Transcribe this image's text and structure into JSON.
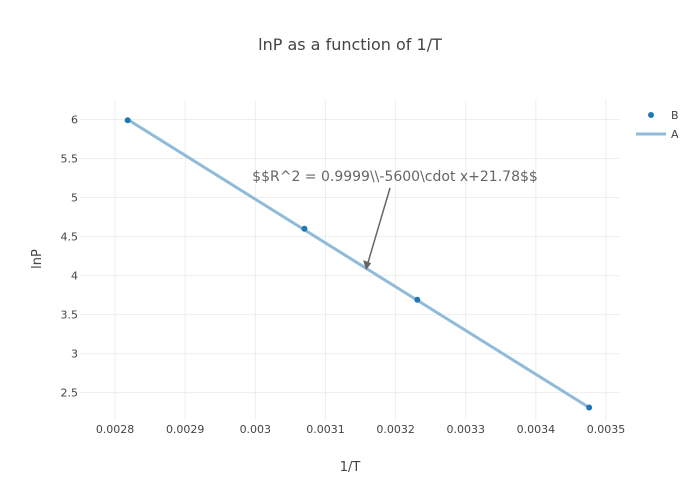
{
  "chart_data": {
    "type": "line",
    "title": "lnP as a function of 1/T",
    "xlabel": "1/T",
    "ylabel": "lnP",
    "xlim": [
      0.00275,
      0.00352
    ],
    "ylim": [
      2.15,
      6.25
    ],
    "xticks": [
      0.0028,
      0.0029,
      0.003,
      0.0031,
      0.0032,
      0.0033,
      0.0034,
      0.0035
    ],
    "xtick_labels": [
      "0.0028",
      "0.0029",
      "0.003",
      "0.0031",
      "0.0032",
      "0.0033",
      "0.0034",
      "0.0035"
    ],
    "yticks": [
      2.5,
      3,
      3.5,
      4,
      4.5,
      5,
      5.5,
      6
    ],
    "ytick_labels": [
      "2.5",
      "3",
      "3.5",
      "4",
      "4.5",
      "5",
      "5.5",
      "6"
    ],
    "grid": true,
    "legend_position": "top-right",
    "series": [
      {
        "name": "B",
        "mode": "markers",
        "color": "#1f77b4",
        "x": [
          0.002818,
          0.00307,
          0.003231,
          0.003476
        ],
        "y": [
          5.99,
          4.6,
          3.69,
          2.31
        ]
      },
      {
        "name": "A",
        "mode": "lines",
        "color": "#8fbbd9",
        "x": [
          0.002818,
          0.003476
        ],
        "y": [
          6.0,
          2.31
        ]
      }
    ],
    "annotation": {
      "text": "$$R^2 = 0.9999\\\\-5600\\cdot x+21.78$$",
      "x": 0.003158,
      "y": 4.07
    }
  }
}
